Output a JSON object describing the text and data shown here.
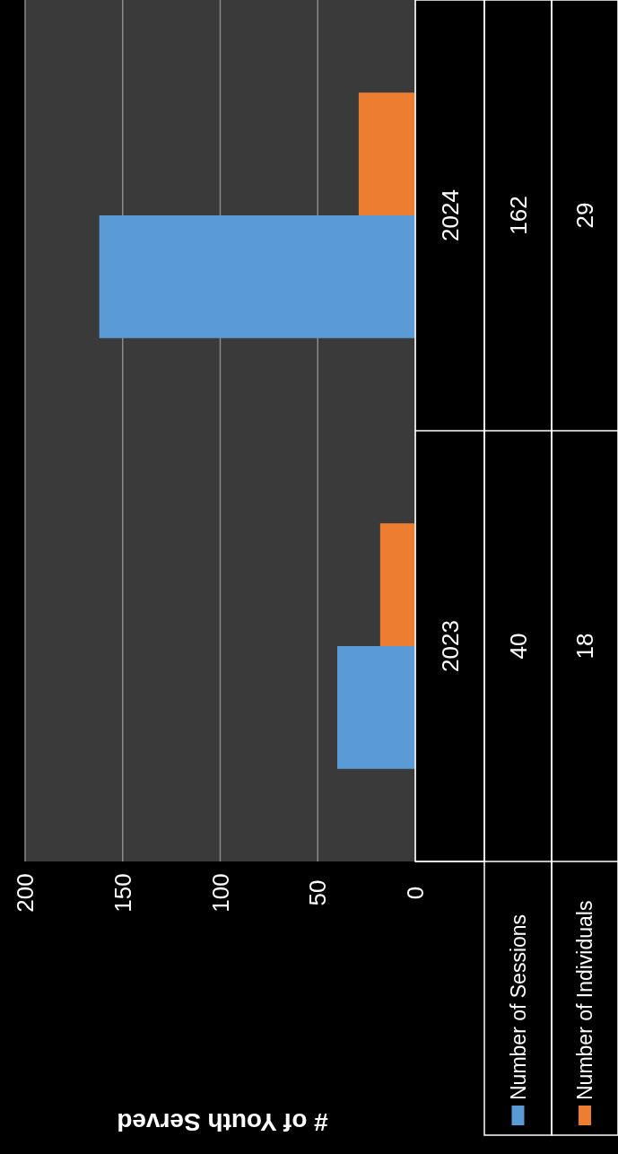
{
  "chart_data": {
    "type": "bar",
    "orientation": "horizontal",
    "annotations": [
      "# of Youth Served"
    ],
    "categories": [
      "2024",
      "2023"
    ],
    "series": [
      {
        "name": "Number of Sessions",
        "color": "#5b9bd5",
        "values": [
          162,
          40
        ]
      },
      {
        "name": "Number of Individuals",
        "color": "#ed7d31",
        "values": [
          29,
          18
        ]
      }
    ],
    "xlim": [
      200,
      0
    ],
    "xticks": [
      200,
      150,
      100,
      50,
      0
    ],
    "grid": "x",
    "data_labels": true,
    "legend": "bottom"
  }
}
